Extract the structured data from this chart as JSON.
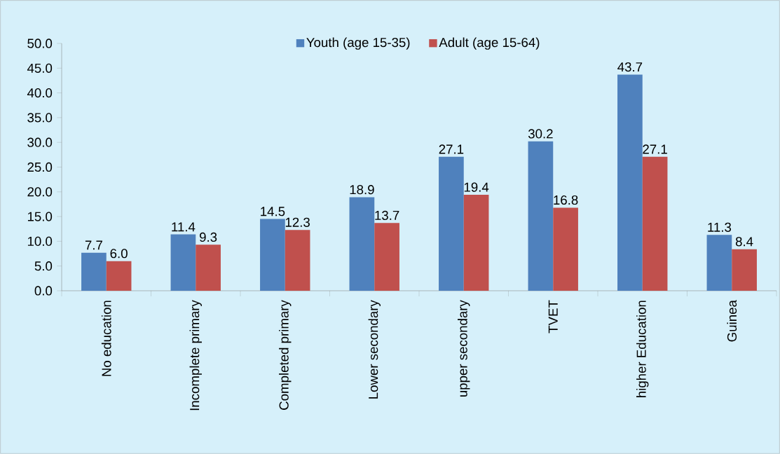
{
  "chart_data": {
    "type": "bar",
    "categories": [
      "No education",
      "Incomplete primary",
      "Completed primary",
      "Lower secondary",
      "upper secondary",
      "TVET",
      "higher Education",
      "Guinea"
    ],
    "series": [
      {
        "name": "Youth (age 15-35)",
        "color": "#4f81bd",
        "values": [
          7.7,
          11.4,
          14.5,
          18.9,
          27.1,
          30.2,
          43.7,
          11.3
        ],
        "value_labels": [
          "7.7",
          "11.4",
          "14.5",
          "18.9",
          "27.1",
          "30.2",
          "43.7",
          "11.3"
        ]
      },
      {
        "name": "Adult (age 15-64)",
        "color": "#c0504d",
        "values": [
          6.0,
          9.3,
          12.3,
          13.7,
          19.4,
          16.8,
          27.1,
          8.4
        ],
        "value_labels": [
          "6.0",
          "9.3",
          "12.3",
          "13.7",
          "19.4",
          "16.8",
          "27.1",
          "8.4"
        ]
      }
    ],
    "ylim": [
      0,
      50
    ],
    "yticks": [
      {
        "value": 0,
        "label": "0.0"
      },
      {
        "value": 5,
        "label": "5.0"
      },
      {
        "value": 10,
        "label": "10.0"
      },
      {
        "value": 15,
        "label": "15.0"
      },
      {
        "value": 20,
        "label": "20.0"
      },
      {
        "value": 25,
        "label": "25.0"
      },
      {
        "value": 30,
        "label": "30.0"
      },
      {
        "value": 35,
        "label": "35.0"
      },
      {
        "value": 40,
        "label": "40.0"
      },
      {
        "value": 45,
        "label": "45.0"
      },
      {
        "value": 50,
        "label": "50.0"
      }
    ],
    "legend": "top"
  }
}
